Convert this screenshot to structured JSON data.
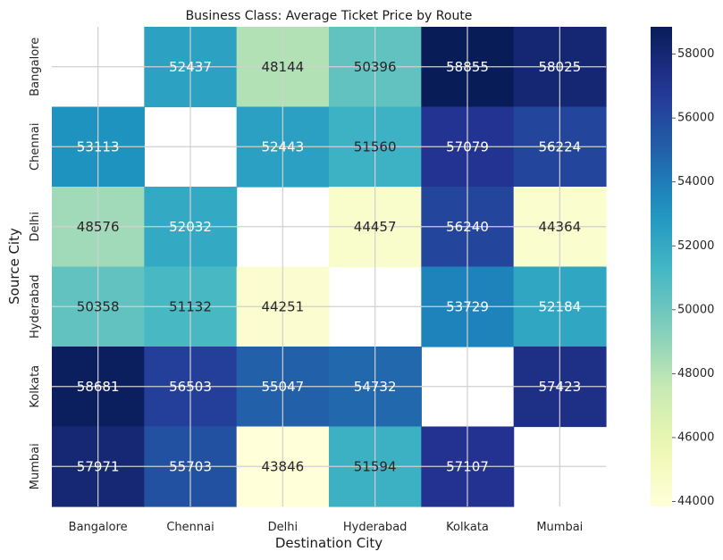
{
  "chart_data": {
    "type": "heatmap",
    "title": "Business Class: Average Ticket Price by Route",
    "xlabel": "Destination City",
    "ylabel": "Source City",
    "x_categories": [
      "Bangalore",
      "Chennai",
      "Delhi",
      "Hyderabad",
      "Kolkata",
      "Mumbai"
    ],
    "y_categories": [
      "Bangalore",
      "Chennai",
      "Delhi",
      "Hyderabad",
      "Kolkata",
      "Mumbai"
    ],
    "values": [
      [
        null,
        52437,
        48144,
        50396,
        58855,
        58025
      ],
      [
        53113,
        null,
        52443,
        51560,
        57079,
        56224
      ],
      [
        48576,
        52032,
        null,
        44457,
        56240,
        44364
      ],
      [
        50358,
        51132,
        44251,
        null,
        53729,
        52184
      ],
      [
        58681,
        56503,
        55047,
        54732,
        null,
        57423
      ],
      [
        57971,
        55703,
        43846,
        51594,
        57107,
        null
      ]
    ],
    "colormap": "YlGnBu",
    "vmin": 43846,
    "vmax": 58855,
    "colorbar_ticks": [
      44000,
      46000,
      48000,
      50000,
      52000,
      54000,
      56000,
      58000
    ],
    "grid": true
  }
}
